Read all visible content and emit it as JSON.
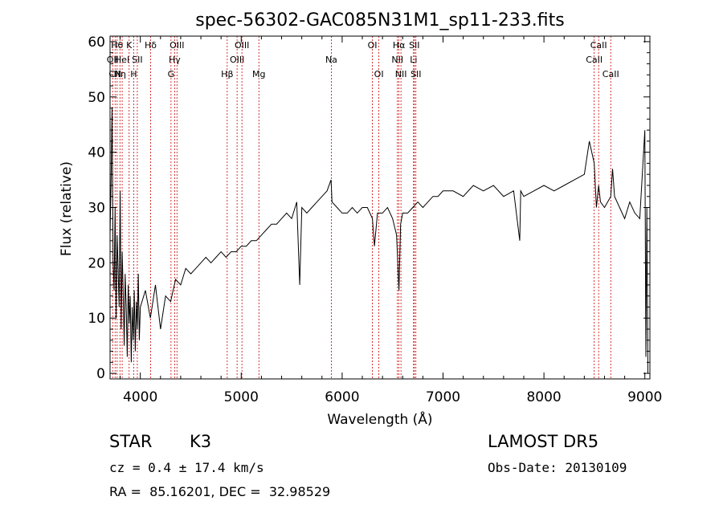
{
  "chart_data": {
    "type": "line",
    "title": "spec-56302-GAC085N31M1_sp11-233.fits",
    "xlabel": "Wavelength (Å)",
    "ylabel": "Flux (relative)",
    "xlim": [
      3700,
      9050
    ],
    "ylim": [
      -1,
      61
    ],
    "x_ticks": [
      4000,
      5000,
      6000,
      7000,
      8000,
      9000
    ],
    "y_ticks": [
      0,
      10,
      20,
      30,
      40,
      50,
      60
    ],
    "grid": false,
    "line_color": "#000000",
    "marker_color": "#cc0000",
    "spectrum": {
      "name": "",
      "x": [
        3700,
        3710,
        3720,
        3730,
        3740,
        3750,
        3760,
        3770,
        3780,
        3790,
        3800,
        3810,
        3820,
        3830,
        3840,
        3850,
        3860,
        3870,
        3880,
        3890,
        3900,
        3910,
        3920,
        3930,
        3940,
        3950,
        3960,
        3970,
        3980,
        3990,
        4000,
        4050,
        4100,
        4150,
        4200,
        4250,
        4300,
        4350,
        4400,
        4450,
        4500,
        4550,
        4600,
        4650,
        4700,
        4750,
        4800,
        4850,
        4900,
        4950,
        5000,
        5050,
        5100,
        5150,
        5200,
        5250,
        5300,
        5350,
        5400,
        5450,
        5500,
        5550,
        5580,
        5600,
        5650,
        5700,
        5750,
        5800,
        5850,
        5890,
        5900,
        5950,
        6000,
        6050,
        6100,
        6150,
        6200,
        6250,
        6300,
        6320,
        6350,
        6400,
        6450,
        6500,
        6540,
        6563,
        6580,
        6600,
        6650,
        6700,
        6750,
        6800,
        6850,
        6900,
        6950,
        7000,
        7100,
        7200,
        7300,
        7400,
        7500,
        7600,
        7700,
        7760,
        7770,
        7800,
        7900,
        8000,
        8100,
        8200,
        8300,
        8400,
        8450,
        8498,
        8520,
        8542,
        8560,
        8600,
        8662,
        8680,
        8700,
        8750,
        8800,
        8850,
        8900,
        8950,
        9000,
        9010,
        9020,
        9030
      ],
      "y": [
        25,
        35,
        48,
        20,
        15,
        30,
        10,
        25,
        19,
        12,
        33,
        8,
        22,
        15,
        5,
        18,
        12,
        3,
        16,
        9,
        14,
        2,
        12,
        6,
        15,
        4,
        13,
        8,
        18,
        6,
        12,
        15,
        10,
        16,
        8,
        14,
        13,
        17,
        16,
        19,
        18,
        19,
        20,
        21,
        20,
        21,
        22,
        21,
        22,
        22,
        23,
        23,
        24,
        24,
        25,
        26,
        27,
        27,
        28,
        29,
        28,
        31,
        16,
        30,
        29,
        30,
        31,
        32,
        33,
        35,
        31,
        30,
        29,
        29,
        30,
        29,
        30,
        30,
        28,
        23,
        29,
        29,
        30,
        28,
        25,
        15,
        27,
        29,
        29,
        30,
        31,
        30,
        31,
        32,
        32,
        33,
        33,
        32,
        34,
        33,
        34,
        32,
        33,
        24,
        33,
        32,
        33,
        34,
        33,
        34,
        35,
        36,
        42,
        38,
        30,
        34,
        31,
        30,
        32,
        37,
        32,
        30,
        28,
        31,
        29,
        28,
        44,
        3,
        30,
        0
      ]
    },
    "line_markers": [
      {
        "wavelength": 3726,
        "label": "OII",
        "row": 2
      },
      {
        "wavelength": 3750,
        "label": "CN",
        "row": 3
      },
      {
        "wavelength": 3770,
        "label": "Hθ",
        "row": 1
      },
      {
        "wavelength": 3798,
        "label": "Hη",
        "row": 3
      },
      {
        "wavelength": 3820,
        "label": "HeI",
        "row": 2
      },
      {
        "wavelength": 3889,
        "label": "K",
        "row": 1
      },
      {
        "wavelength": 3934,
        "label": "H",
        "row": 3
      },
      {
        "wavelength": 3970,
        "label": "SII",
        "row": 2
      },
      {
        "wavelength": 4102,
        "label": "Hδ",
        "row": 1
      },
      {
        "wavelength": 4304,
        "label": "G",
        "row": 3
      },
      {
        "wavelength": 4340,
        "label": "Hγ",
        "row": 2
      },
      {
        "wavelength": 4363,
        "label": "OIII",
        "row": 1
      },
      {
        "wavelength": 4861,
        "label": "Hβ",
        "row": 3
      },
      {
        "wavelength": 4959,
        "label": "OIII",
        "row": 2
      },
      {
        "wavelength": 5007,
        "label": "OIII",
        "row": 1
      },
      {
        "wavelength": 5175,
        "label": "Mg",
        "row": 3
      },
      {
        "wavelength": 5893,
        "label": "Na",
        "row": 2
      },
      {
        "wavelength": 6300,
        "label": "OI",
        "row": 1
      },
      {
        "wavelength": 6364,
        "label": "OI",
        "row": 3
      },
      {
        "wavelength": 6548,
        "label": "NII",
        "row": 2
      },
      {
        "wavelength": 6563,
        "label": "Hα",
        "row": 1
      },
      {
        "wavelength": 6583,
        "label": "NII",
        "row": 3
      },
      {
        "wavelength": 6708,
        "label": "Li",
        "row": 2
      },
      {
        "wavelength": 6716,
        "label": "SII",
        "row": 1
      },
      {
        "wavelength": 6731,
        "label": "SII",
        "row": 3
      },
      {
        "wavelength": 8498,
        "label": "CaII",
        "row": 2
      },
      {
        "wavelength": 8542,
        "label": "CaII",
        "row": 1
      },
      {
        "wavelength": 8662,
        "label": "CaII",
        "row": 3
      }
    ]
  },
  "info": {
    "object_class": "STAR",
    "subclass": "K3",
    "cz": "cz = 0.4 ± 17.4 km/s",
    "coords": "RA =  85.16201, DEC =  32.98529",
    "survey": "LAMOST DR5",
    "obs_date": "Obs-Date: 20130109"
  }
}
